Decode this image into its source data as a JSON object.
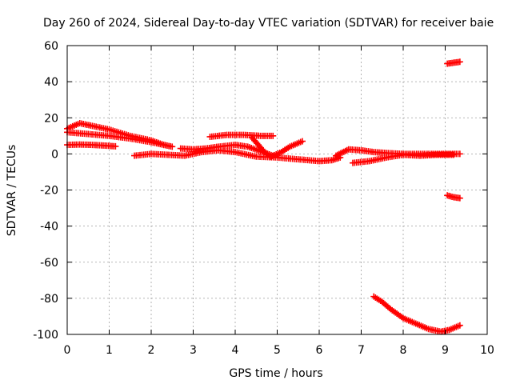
{
  "chart_data": {
    "type": "scatter",
    "title": "Day 260 of 2024, Sidereal Day-to-day VTEC variation (SDTVAR) for receiver baie",
    "xlabel": "GPS time / hours",
    "ylabel": "SDTVAR / TECUs",
    "xlim": [
      0,
      10
    ],
    "ylim": [
      -100,
      60
    ],
    "x_ticks": [
      "0",
      "1",
      "2",
      "3",
      "4",
      "5",
      "6",
      "7",
      "8",
      "9",
      "10"
    ],
    "y_ticks": [
      "-100",
      "-80",
      "-60",
      "-40",
      "-20",
      "0",
      "20",
      "40",
      "60"
    ],
    "grid": true,
    "marker": "plus",
    "color": "#ff0000",
    "series": [
      {
        "points": [
          [
            0,
            5
          ],
          [
            0.3,
            5.2
          ],
          [
            0.6,
            5
          ],
          [
            0.9,
            4.6
          ],
          [
            1.15,
            4.2
          ]
        ]
      },
      {
        "points": [
          [
            0,
            12
          ],
          [
            0.5,
            11
          ],
          [
            1,
            10
          ],
          [
            1.5,
            8.5
          ],
          [
            2,
            6.5
          ],
          [
            2.3,
            5
          ],
          [
            2.5,
            4
          ]
        ]
      },
      {
        "points": [
          [
            0,
            14
          ],
          [
            0.3,
            17
          ],
          [
            0.6,
            15.5
          ],
          [
            1,
            13.5
          ],
          [
            1.5,
            10
          ],
          [
            2,
            7.5
          ],
          [
            2.3,
            5
          ]
        ]
      },
      {
        "points": [
          [
            1.6,
            -1
          ],
          [
            2,
            0
          ],
          [
            2.4,
            -0.5
          ],
          [
            2.8,
            -1
          ],
          [
            3.2,
            1
          ],
          [
            3.6,
            2
          ],
          [
            4,
            1
          ],
          [
            4.5,
            -1.5
          ],
          [
            5,
            -2
          ],
          [
            5.5,
            -3
          ],
          [
            6,
            -4
          ],
          [
            6.3,
            -3.5
          ],
          [
            6.5,
            -2
          ]
        ]
      },
      {
        "points": [
          [
            2.7,
            3
          ],
          [
            3,
            2.5
          ],
          [
            3.3,
            3
          ],
          [
            3.6,
            4
          ],
          [
            4,
            5
          ],
          [
            4.3,
            4
          ],
          [
            4.6,
            1.5
          ],
          [
            4.9,
            -1
          ]
        ]
      },
      {
        "points": [
          [
            3.4,
            9.5
          ],
          [
            3.8,
            10.5
          ],
          [
            4.2,
            10.5
          ],
          [
            4.6,
            10
          ],
          [
            4.9,
            10
          ]
        ]
      },
      {
        "points": [
          [
            4.4,
            9
          ],
          [
            4.55,
            5
          ],
          [
            4.7,
            1
          ],
          [
            4.85,
            -1.5
          ],
          [
            5.1,
            1
          ],
          [
            5.3,
            4
          ],
          [
            5.6,
            7
          ]
        ]
      },
      {
        "points": [
          [
            6.4,
            -1
          ],
          [
            6.7,
            2.5
          ],
          [
            7,
            2
          ],
          [
            7.3,
            1
          ],
          [
            7.6,
            0.5
          ],
          [
            8,
            0
          ],
          [
            8.5,
            0
          ],
          [
            9,
            0
          ],
          [
            9.35,
            0
          ]
        ]
      },
      {
        "points": [
          [
            6.8,
            -5
          ],
          [
            7.2,
            -4
          ],
          [
            7.6,
            -2
          ],
          [
            8,
            -0.5
          ],
          [
            8.4,
            -1
          ],
          [
            8.8,
            -0.5
          ],
          [
            9.2,
            -0.5
          ]
        ]
      },
      {
        "points": [
          [
            9.05,
            50
          ],
          [
            9.2,
            50.5
          ],
          [
            9.35,
            51
          ]
        ]
      },
      {
        "points": [
          [
            9.05,
            -23
          ],
          [
            9.2,
            -24
          ],
          [
            9.35,
            -24.5
          ]
        ]
      },
      {
        "points": [
          [
            7.3,
            -79
          ],
          [
            7.5,
            -82
          ],
          [
            7.7,
            -86
          ],
          [
            8,
            -91
          ],
          [
            8.3,
            -94
          ],
          [
            8.6,
            -97
          ],
          [
            8.9,
            -98.5
          ],
          [
            9.1,
            -97.5
          ],
          [
            9.35,
            -95
          ]
        ]
      }
    ]
  }
}
